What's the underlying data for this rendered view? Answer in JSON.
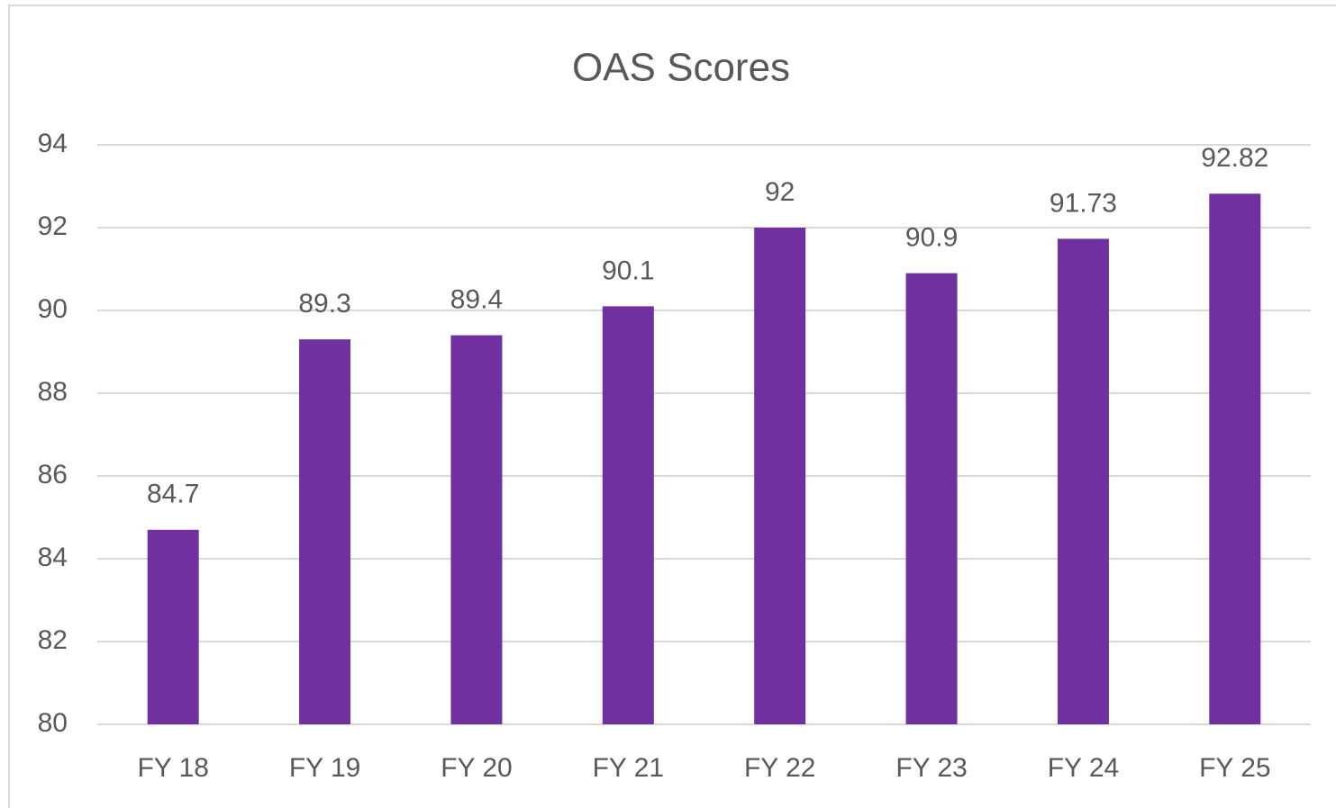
{
  "chart_data": {
    "type": "bar",
    "title": "OAS Scores",
    "categories": [
      "FY 18",
      "FY 19",
      "FY 20",
      "FY 21",
      "FY 22",
      "FY 23",
      "FY 24",
      "FY 25"
    ],
    "values": [
      84.7,
      89.3,
      89.4,
      90.1,
      92,
      90.9,
      91.73,
      92.82
    ],
    "color": "#7030a0",
    "ylim": [
      80,
      94
    ],
    "yticks": [
      80,
      82,
      84,
      86,
      88,
      90,
      92,
      94
    ],
    "grid": true
  }
}
